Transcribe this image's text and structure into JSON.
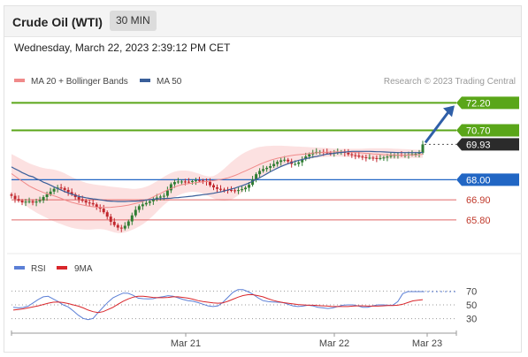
{
  "header": {
    "instrument": "Crude Oil (WTI)",
    "timeframe": "30 MIN"
  },
  "datetime": "Wednesday, March 22, 2023 2:39:12 PM CET",
  "legend": {
    "ma20_bb": "MA 20 + Bollinger Bands",
    "ma50": "MA 50"
  },
  "credit": "Research © 2023 Trading Central",
  "rsi_legend": {
    "rsi": "RSI",
    "ma": "9MA"
  },
  "colors": {
    "resistance": "#5aa619",
    "support": "#2166c4",
    "bull": "#2f7d32",
    "bear": "#c2272d",
    "bollinger": "#fbdada",
    "ma20": "#f08a8a",
    "ma50": "#3a5f9a",
    "rsi": "#5b7fd6",
    "rsi_ma": "#d9262b",
    "arrow": "#2f5fa8",
    "last_price": "#2b2b2b",
    "support2": "#e06666"
  },
  "chart_data": {
    "type": "candlestick",
    "title": "Crude Oil (WTI)",
    "timeframe": "30 MIN",
    "x_ticks": [
      "Mar 21",
      "Mar 22",
      "Mar 23"
    ],
    "ylim": [
      64.2,
      72.8
    ],
    "levels": [
      {
        "label": "72.20",
        "value": 72.2,
        "kind": "resistance"
      },
      {
        "label": "70.70",
        "value": 70.7,
        "kind": "resistance"
      },
      {
        "label": "69.93",
        "value": 69.93,
        "kind": "last"
      },
      {
        "label": "68.00",
        "value": 68.0,
        "kind": "pivot"
      },
      {
        "label": "66.90",
        "value": 66.9,
        "kind": "support"
      },
      {
        "label": "65.80",
        "value": 65.8,
        "kind": "support"
      }
    ],
    "close": [
      67.12,
      66.94,
      66.85,
      66.76,
      66.8,
      66.82,
      66.75,
      66.81,
      66.87,
      67.05,
      67.2,
      67.35,
      67.5,
      67.57,
      67.54,
      67.44,
      67.32,
      67.2,
      67.05,
      66.93,
      66.85,
      66.75,
      66.72,
      66.65,
      66.5,
      66.42,
      66.22,
      65.98,
      65.7,
      65.52,
      65.38,
      65.33,
      65.48,
      65.72,
      66.05,
      66.35,
      66.55,
      66.65,
      66.73,
      66.82,
      66.92,
      67.02,
      67.08,
      67.12,
      67.42,
      67.75,
      67.87,
      67.9,
      67.9,
      67.89,
      67.88,
      67.92,
      67.96,
      67.95,
      67.92,
      67.88,
      67.7,
      67.58,
      67.5,
      67.46,
      67.45,
      67.44,
      67.42,
      67.41,
      67.43,
      67.48,
      67.56,
      67.72,
      68.01,
      68.3,
      68.48,
      68.58,
      68.65,
      68.74,
      68.86,
      68.97,
      69.06,
      69.09,
      69.0,
      68.86,
      68.86,
      68.95,
      69.12,
      69.27,
      69.39,
      69.48,
      69.52,
      69.52,
      69.5,
      69.47,
      69.46,
      69.47,
      69.51,
      69.52,
      69.47,
      69.39,
      69.34,
      69.32,
      69.26,
      69.22,
      69.2,
      69.2,
      69.18,
      69.16,
      69.18,
      69.21,
      69.26,
      69.31,
      69.35,
      69.36,
      69.35,
      69.35,
      69.38,
      69.4,
      69.42,
      69.47,
      69.93
    ],
    "ma50": [
      68.7,
      68.59,
      68.5,
      68.39,
      68.3,
      68.21,
      68.16,
      68.05,
      67.97,
      67.86,
      67.79,
      67.7,
      67.61,
      67.52,
      67.43,
      67.35,
      67.28,
      67.21,
      67.14,
      67.08,
      67.05,
      67.01,
      66.98,
      66.95,
      66.93,
      66.9,
      66.87,
      66.84,
      66.83,
      66.82,
      66.81,
      66.81,
      66.81,
      66.82,
      66.83,
      66.83,
      66.84,
      66.86,
      66.89,
      66.91,
      66.93,
      66.95,
      66.96,
      66.97,
      66.98,
      66.99,
      67.01,
      67.02,
      67.04,
      67.06,
      67.08,
      67.1,
      67.13,
      67.15,
      67.18,
      67.2,
      67.23,
      67.26,
      67.3,
      67.33,
      67.38,
      67.43,
      67.49,
      67.54,
      67.61,
      67.67,
      67.74,
      67.82,
      67.92,
      68.01,
      68.11,
      68.21,
      68.32,
      68.43,
      68.53,
      68.63,
      68.72,
      68.8,
      68.87,
      68.94,
      69.0,
      69.06,
      69.1,
      69.15,
      69.19,
      69.24,
      69.27,
      69.31,
      69.36,
      69.4,
      69.42,
      69.44,
      69.47,
      69.49,
      69.51,
      69.53,
      69.55,
      69.55,
      69.55,
      69.55,
      69.55,
      69.55,
      69.54,
      69.53,
      69.53,
      69.52,
      69.51,
      69.5,
      69.49,
      69.48,
      69.48,
      69.48,
      69.48,
      69.48,
      69.48,
      69.48,
      69.49
    ],
    "ma20": [
      68.33,
      68.19,
      68.05,
      67.92,
      67.79,
      67.66,
      67.56,
      67.46,
      67.38,
      67.3,
      67.24,
      67.18,
      67.12,
      67.05,
      66.98,
      66.9,
      66.83,
      66.76,
      66.71,
      66.66,
      66.62,
      66.58,
      66.55,
      66.52,
      66.5,
      66.49,
      66.48,
      66.48,
      66.49,
      66.51,
      66.53,
      66.55,
      66.58,
      66.61,
      66.66,
      66.7,
      66.75,
      66.81,
      66.89,
      66.97,
      67.06,
      67.16,
      67.25,
      67.35,
      67.44,
      67.52,
      67.6,
      67.67,
      67.72,
      67.76,
      67.79,
      67.81,
      67.84,
      67.86,
      67.88,
      67.9,
      67.92,
      67.95,
      67.98,
      68.01,
      68.05,
      68.1,
      68.16,
      68.23,
      68.31,
      68.4,
      68.48,
      68.57,
      68.66,
      68.75,
      68.84,
      68.92,
      68.99,
      69.06,
      69.12,
      69.17,
      69.21,
      69.25,
      69.29,
      69.32,
      69.35,
      69.37,
      69.39,
      69.41,
      69.43,
      69.45,
      69.47,
      69.48,
      69.49,
      69.5,
      69.51,
      69.52,
      69.52,
      69.52,
      69.52,
      69.51,
      69.5,
      69.49,
      69.47,
      69.46,
      69.44,
      69.43,
      69.41,
      69.4,
      69.38,
      69.37,
      69.36,
      69.35,
      69.35,
      69.34,
      69.34,
      69.34,
      69.35,
      69.35,
      69.36,
      69.37,
      69.39
    ],
    "bb_upper": [
      69.4,
      69.3,
      69.2,
      69.1,
      69.0,
      68.9,
      68.82,
      68.75,
      68.69,
      68.64,
      68.6,
      68.58,
      68.55,
      68.5,
      68.43,
      68.35,
      68.25,
      68.15,
      68.06,
      67.98,
      67.9,
      67.83,
      67.79,
      67.75,
      67.72,
      67.7,
      67.68,
      67.65,
      67.62,
      67.6,
      67.58,
      67.56,
      67.54,
      67.52,
      67.5,
      67.5,
      67.52,
      67.56,
      67.62,
      67.7,
      67.8,
      67.92,
      68.04,
      68.16,
      68.27,
      68.37,
      68.44,
      68.48,
      68.5,
      68.5,
      68.48,
      68.44,
      68.38,
      68.32,
      68.25,
      68.2,
      68.17,
      68.2,
      68.3,
      68.44,
      68.6,
      68.78,
      68.96,
      69.12,
      69.27,
      69.4,
      69.51,
      69.6,
      69.68,
      69.74,
      69.79,
      69.82,
      69.84,
      69.85,
      69.86,
      69.86,
      69.86,
      69.85,
      69.84,
      69.83,
      69.82,
      69.81,
      69.8,
      69.79,
      69.78,
      69.77,
      69.76,
      69.75,
      69.74,
      69.73,
      69.72,
      69.71,
      69.7,
      69.69,
      69.69,
      69.69,
      69.69,
      69.69,
      69.69,
      69.7,
      69.71,
      69.72,
      69.72,
      69.72,
      69.72,
      69.72,
      69.72,
      69.71,
      69.7,
      69.69,
      69.68,
      69.67,
      69.66,
      69.65,
      69.64,
      69.63,
      69.62
    ],
    "bb_lower": [
      67.25,
      67.08,
      66.92,
      66.76,
      66.6,
      66.44,
      66.32,
      66.2,
      66.1,
      66.0,
      65.9,
      65.8,
      65.72,
      65.64,
      65.57,
      65.5,
      65.43,
      65.37,
      65.33,
      65.3,
      65.28,
      65.27,
      65.27,
      65.28,
      65.3,
      65.3,
      65.28,
      65.24,
      65.18,
      65.12,
      65.08,
      65.08,
      65.12,
      65.18,
      65.26,
      65.34,
      65.44,
      65.56,
      65.7,
      65.86,
      66.04,
      66.24,
      66.44,
      66.62,
      66.78,
      66.92,
      67.04,
      67.14,
      67.22,
      67.28,
      67.32,
      67.34,
      67.33,
      67.3,
      67.24,
      67.16,
      67.06,
      66.98,
      66.9,
      66.86,
      66.85,
      66.86,
      66.92,
      67.01,
      67.14,
      67.3,
      67.47,
      67.65,
      67.82,
      67.97,
      68.1,
      68.23,
      68.35,
      68.46,
      68.56,
      68.65,
      68.73,
      68.8,
      68.86,
      68.92,
      68.97,
      69.02,
      69.06,
      69.1,
      69.14,
      69.17,
      69.2,
      69.22,
      69.24,
      69.25,
      69.26,
      69.26,
      69.26,
      69.26,
      69.25,
      69.24,
      69.23,
      69.22,
      69.21,
      69.2,
      69.19,
      69.18,
      69.17,
      69.16,
      69.16,
      69.15,
      69.15,
      69.15,
      69.15,
      69.15,
      69.16,
      69.16,
      69.17,
      69.18,
      69.18,
      69.19,
      69.2
    ],
    "rsi_panel": {
      "ticks": [
        70,
        50,
        30
      ],
      "ylim": [
        18,
        82
      ],
      "rsi": [
        46.5,
        45.6,
        46.2,
        48.2,
        53.0,
        57.8,
        61.7,
        62.4,
        58.6,
        54.8,
        50.0,
        47.1,
        41.4,
        35.2,
        30.4,
        28.6,
        30.4,
        39.0,
        46.5,
        54.2,
        60.4,
        63.8,
        67.0,
        66.8,
        63.8,
        59.7,
        59.0,
        58.6,
        59.0,
        60.8,
        61.8,
        63.3,
        62.4,
        60.2,
        57.8,
        56.2,
        55.2,
        53.3,
        50.9,
        48.6,
        47.6,
        48.6,
        53.8,
        61.0,
        68.2,
        72.0,
        72.0,
        69.2,
        65.4,
        60.2,
        56.2,
        54.8,
        54.2,
        53.8,
        53.3,
        50.9,
        48.6,
        47.6,
        48.2,
        49.5,
        48.6,
        46.5,
        45.6,
        44.8,
        45.6,
        47.6,
        49.5,
        50.0,
        50.0,
        48.6,
        46.5,
        46.5,
        48.6,
        50.0,
        50.0,
        49.5,
        49.5,
        54.8,
        66.2,
        69.2,
        69.2,
        69.2,
        69.2
      ],
      "rsi_ma": [
        42.5,
        43.3,
        44.3,
        45.6,
        47.1,
        48.6,
        50.5,
        52.4,
        53.8,
        54.2,
        53.3,
        51.9,
        50.0,
        48.2,
        45.6,
        42.5,
        40.1,
        38.8,
        40.1,
        43.3,
        46.5,
        51.0,
        55.2,
        58.6,
        61.2,
        62.4,
        62.4,
        61.7,
        60.8,
        60.4,
        60.4,
        60.8,
        61.7,
        61.7,
        60.8,
        59.7,
        58.2,
        56.2,
        54.8,
        53.8,
        52.9,
        52.4,
        52.9,
        55.2,
        58.2,
        61.2,
        63.5,
        64.7,
        64.7,
        63.3,
        61.7,
        59.0,
        56.6,
        54.8,
        53.3,
        52.4,
        51.4,
        50.5,
        50.0,
        49.5,
        49.5,
        49.1,
        48.6,
        48.2,
        47.6,
        47.6,
        47.6,
        47.6,
        48.2,
        48.6,
        48.6,
        48.2,
        48.2,
        48.2,
        48.6,
        49.1,
        49.1,
        49.5,
        50.9,
        53.3,
        55.7,
        56.6,
        57.6
      ]
    }
  }
}
